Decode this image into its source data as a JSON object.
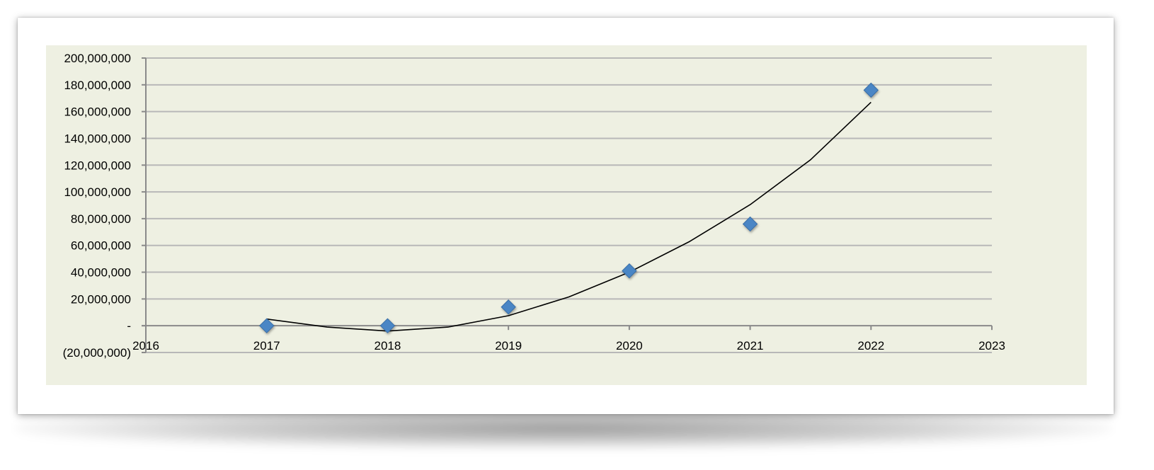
{
  "chart_data": {
    "type": "scatter",
    "title": "",
    "xlabel": "",
    "ylabel": "",
    "xlim": [
      2016,
      2023
    ],
    "ylim": [
      -20000000,
      200000000
    ],
    "x_ticks": [
      "2016",
      "2017",
      "2018",
      "2019",
      "2020",
      "2021",
      "2022",
      "2023"
    ],
    "y_ticks": [
      {
        "value": 200000000,
        "label": "200,000,000"
      },
      {
        "value": 180000000,
        "label": "180,000,000"
      },
      {
        "value": 160000000,
        "label": "160,000,000"
      },
      {
        "value": 140000000,
        "label": "140,000,000"
      },
      {
        "value": 120000000,
        "label": "120,000,000"
      },
      {
        "value": 100000000,
        "label": "100,000,000"
      },
      {
        "value": 80000000,
        "label": "80,000,000"
      },
      {
        "value": 60000000,
        "label": "60,000,000"
      },
      {
        "value": 40000000,
        "label": "40,000,000"
      },
      {
        "value": 20000000,
        "label": "20,000,000"
      },
      {
        "value": 0,
        "label": "-"
      },
      {
        "value": -20000000,
        "label": "(20,000,000)"
      }
    ],
    "series": [
      {
        "x": [
          2017,
          2018,
          2019,
          2020,
          2021,
          2022
        ],
        "y": [
          0,
          0,
          14000000,
          41000000,
          76000000,
          176000000
        ],
        "marker": "diamond",
        "color": "#4a86c5"
      }
    ],
    "trendline": {
      "type": "polynomial-2",
      "x": [
        2017,
        2017.5,
        2018,
        2018.5,
        2019,
        2019.5,
        2020,
        2020.5,
        2021,
        2021.5,
        2022
      ],
      "y": [
        5000000,
        -1000000,
        -4000000,
        -1000000,
        7500000,
        21500000,
        40000000,
        63000000,
        90500000,
        124000000,
        167000000
      ],
      "color": "#000000"
    },
    "grid": true,
    "legend": "none"
  }
}
